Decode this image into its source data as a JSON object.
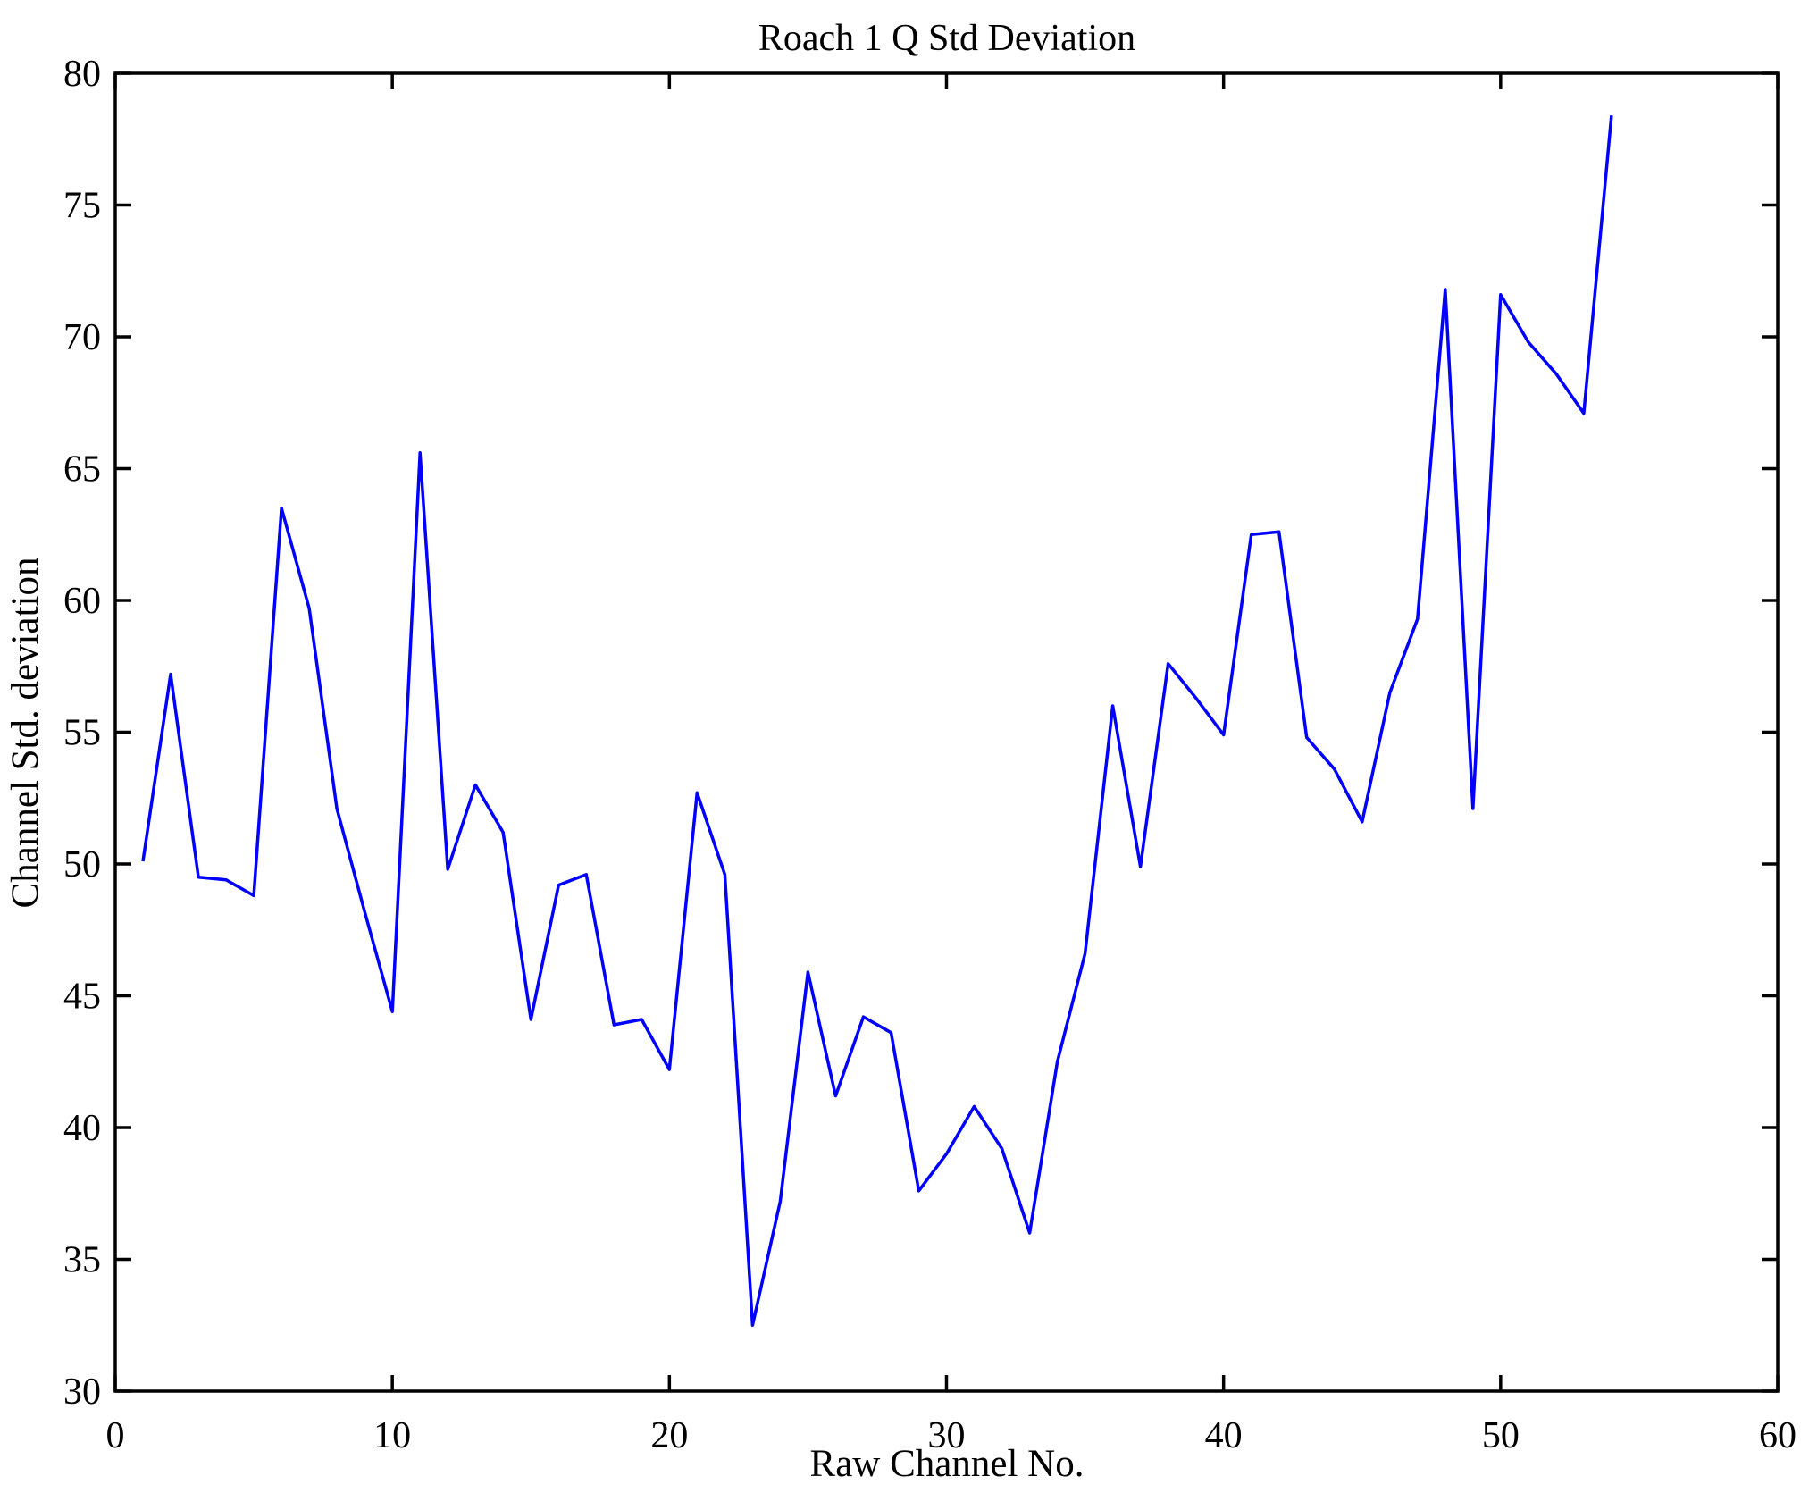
{
  "figure": {
    "title": "Roach 1 Q Std Deviation",
    "xlabel": "Raw Channel No.",
    "ylabel": "Channel Std. deviation"
  },
  "chart_data": {
    "type": "line",
    "title": "Roach 1 Q Std Deviation",
    "xlabel": "Raw Channel No.",
    "ylabel": "Channel Std. deviation",
    "x": [
      1,
      2,
      3,
      4,
      5,
      6,
      7,
      8,
      9,
      10,
      11,
      12,
      13,
      14,
      15,
      16,
      17,
      18,
      19,
      20,
      21,
      22,
      23,
      24,
      25,
      26,
      27,
      28,
      29,
      30,
      31,
      32,
      33,
      34,
      35,
      36,
      37,
      38,
      39,
      40,
      41,
      42,
      43,
      44,
      45,
      46,
      47,
      48,
      49,
      50,
      51,
      52,
      53,
      54
    ],
    "values": [
      50.1,
      57.2,
      49.5,
      49.4,
      48.8,
      63.5,
      59.7,
      52.1,
      48.2,
      44.4,
      65.6,
      49.8,
      53.0,
      51.2,
      44.1,
      49.2,
      49.6,
      43.9,
      44.1,
      42.2,
      52.7,
      49.6,
      32.5,
      37.2,
      45.9,
      41.2,
      44.2,
      43.6,
      37.6,
      39.0,
      40.8,
      39.2,
      36.0,
      42.5,
      46.6,
      56.0,
      49.9,
      57.6,
      56.3,
      54.9,
      62.5,
      62.6,
      54.8,
      53.6,
      51.6,
      56.5,
      59.3,
      71.8,
      52.1,
      71.6,
      69.8,
      68.6,
      67.1,
      78.4
    ],
    "xlim": [
      0,
      60
    ],
    "ylim": [
      30,
      80
    ],
    "xticks": [
      0,
      10,
      20,
      30,
      40,
      50,
      60
    ],
    "yticks": [
      30,
      35,
      40,
      45,
      50,
      55,
      60,
      65,
      70,
      75,
      80
    ],
    "grid": false,
    "legend_position": "none",
    "line_color": "#0000FF",
    "axis_color": "#000000"
  }
}
